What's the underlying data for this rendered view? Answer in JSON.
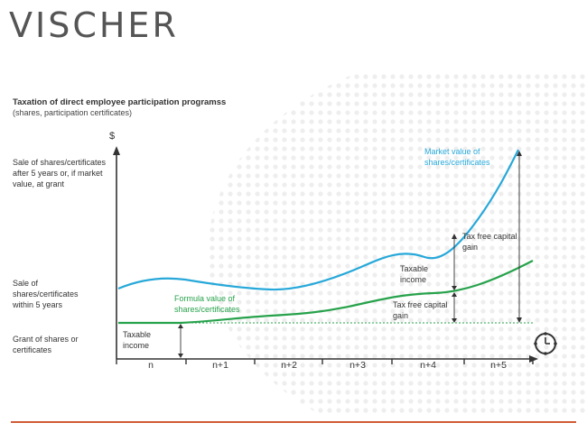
{
  "brand": {
    "logo_text": "VISCHER"
  },
  "diagram": {
    "title": "Taxation of direct employee participation programss",
    "subtitle": "(shares, participation certificates)",
    "y_axis_label": "$",
    "side_labels": {
      "after_5_years": "Sale of shares/certificates after 5 years or, if market value, at grant",
      "within_5_years": "Sale of shares/certificates within 5 years",
      "grant": "Grant of shares or certificates"
    },
    "x_axis_labels": [
      "n",
      "n+1",
      "n+2",
      "n+3",
      "n+4",
      "n+5"
    ],
    "market_value_label": "Market value of shares/certificates",
    "formula_value_label": "Formula value of shares/certificates",
    "taxable_income_grant": "Taxable income",
    "taxable_income_mid": "Taxable income",
    "tax_free_gain_lower": "Tax free capital gain",
    "tax_free_gain_upper": "Tax free capital gain",
    "colors": {
      "market_line": "#27a8d9",
      "formula_line": "#27a24b",
      "axis": "#333333",
      "accent": "#d05a36"
    },
    "icons": {
      "axis_end": "clock-icon"
    }
  }
}
